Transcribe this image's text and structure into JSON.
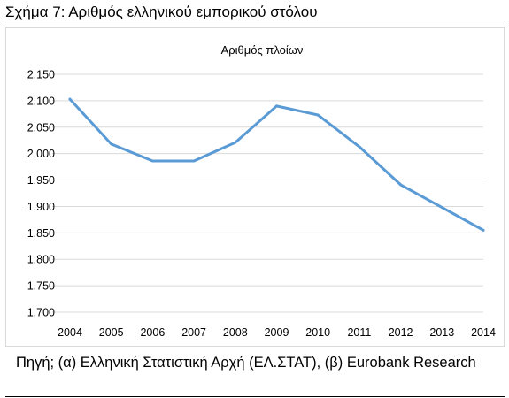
{
  "figure": {
    "title": "Σχήμα 7: Αριθμός ελληνικού εμπορικού στόλου",
    "source": "Πηγή; (α) Ελληνική Στατιστική Αρχή (ΕΛ.ΣΤΑΤ), (β) Eurobank Research"
  },
  "chart_data": {
    "type": "line",
    "title": "Αριθμός πλοίων",
    "xlabel": "",
    "ylabel": "",
    "categories": [
      "2004",
      "2005",
      "2006",
      "2007",
      "2008",
      "2009",
      "2010",
      "2011",
      "2012",
      "2013",
      "2014"
    ],
    "series": [
      {
        "values": [
          2103,
          2018,
          1986,
          1986,
          2021,
          2090,
          2073,
          2013,
          1941,
          1898,
          1855
        ],
        "color": "#5b9bd5"
      }
    ],
    "ylim": [
      1700,
      2150
    ],
    "yticks": [
      "1.700",
      "1.750",
      "1.800",
      "1.850",
      "1.900",
      "1.950",
      "2.000",
      "2.050",
      "2.100",
      "2.150"
    ],
    "grid": true,
    "legend": "none"
  }
}
